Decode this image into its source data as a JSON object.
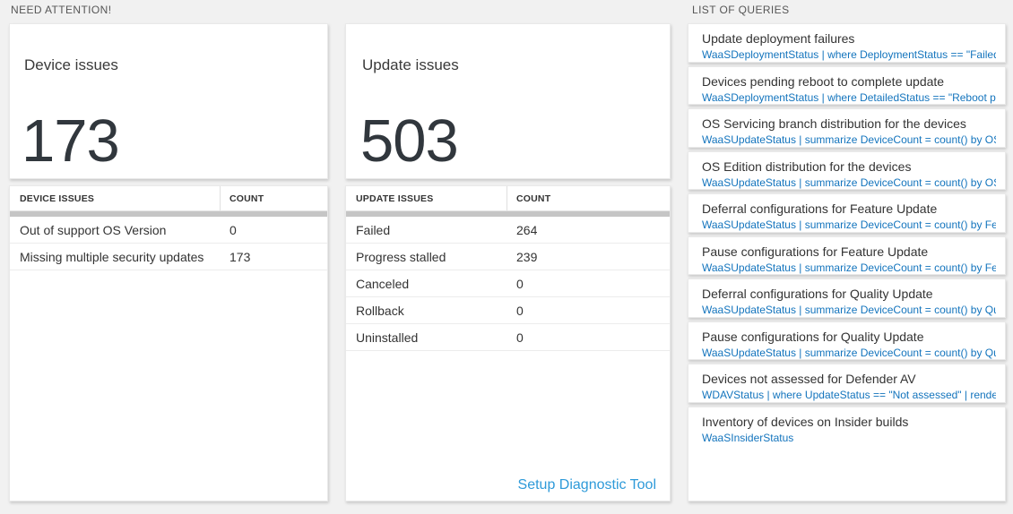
{
  "colors": {
    "page_background": "#f1f1f1",
    "big_number": "#31373d",
    "query_link_blue": "#1374bd",
    "setup_link_blue": "#2e9ad9",
    "thick_divider_gray": "#c5c5c5"
  },
  "sections": {
    "need_attention": "NEED ATTENTION!",
    "list_of_queries": "LIST OF QUERIES"
  },
  "device_card": {
    "title": "Device issues",
    "count": "173"
  },
  "device_table": {
    "headers": [
      "DEVICE ISSUES",
      "COUNT"
    ],
    "rows": [
      {
        "label": "Out of support OS Version",
        "count": "0"
      },
      {
        "label": "Missing multiple security updates",
        "count": "173"
      }
    ]
  },
  "update_card": {
    "title": "Update issues",
    "count": "503"
  },
  "update_table": {
    "headers": [
      "UPDATE ISSUES",
      "COUNT"
    ],
    "rows": [
      {
        "label": "Failed",
        "count": "264"
      },
      {
        "label": "Progress stalled",
        "count": "239"
      },
      {
        "label": "Canceled",
        "count": "0"
      },
      {
        "label": "Rollback",
        "count": "0"
      },
      {
        "label": "Uninstalled",
        "count": "0"
      }
    ],
    "footer_link": "Setup Diagnostic Tool"
  },
  "queries": [
    {
      "title": "Update deployment failures",
      "query": "WaaSDeploymentStatus | where DeploymentStatus == \"Failed\" |..."
    },
    {
      "title": "Devices pending reboot to complete update",
      "query": "WaaSDeploymentStatus | where DetailedStatus == \"Reboot pend..."
    },
    {
      "title": "OS Servicing branch distribution for the devices",
      "query": "WaaSUpdateStatus | summarize DeviceCount = count() by OSSer..."
    },
    {
      "title": "OS Edition distribution for the devices",
      "query": "WaaSUpdateStatus | summarize DeviceCount = count() by OSEdit..."
    },
    {
      "title": "Deferral configurations for Feature Update",
      "query": "WaaSUpdateStatus | summarize DeviceCount = count() by Featur..."
    },
    {
      "title": "Pause configurations for Feature Update",
      "query": "WaaSUpdateStatus | summarize DeviceCount = count() by Featur..."
    },
    {
      "title": "Deferral configurations for Quality Update",
      "query": "WaaSUpdateStatus | summarize DeviceCount = count() by Qualit..."
    },
    {
      "title": "Pause configurations for Quality Update",
      "query": "WaaSUpdateStatus | summarize DeviceCount = count() by Qualit..."
    },
    {
      "title": "Devices not assessed for Defender AV",
      "query": "WDAVStatus | where UpdateStatus == \"Not assessed\" | render ta..."
    },
    {
      "title": "Inventory of devices on Insider builds",
      "query": "WaaSInsiderStatus"
    }
  ]
}
